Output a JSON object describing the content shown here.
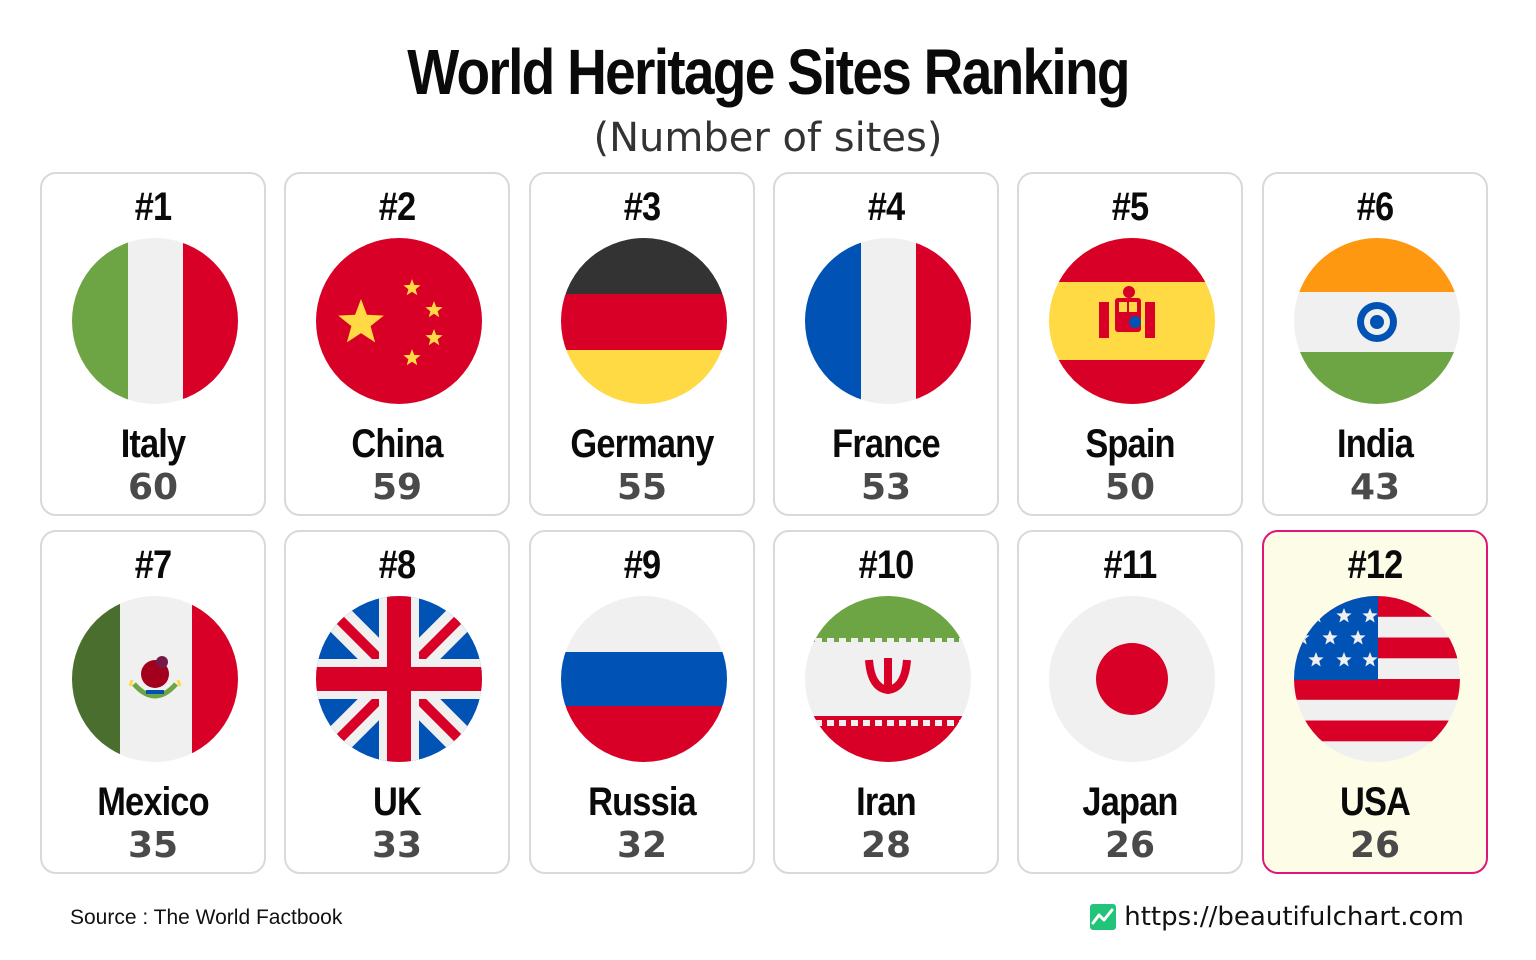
{
  "chart_data": {
    "type": "table",
    "title": "World Heritage Sites Ranking",
    "subtitle": "(Number of sites)",
    "categories": [
      "Italy",
      "China",
      "Germany",
      "France",
      "Spain",
      "India",
      "Mexico",
      "UK",
      "Russia",
      "Iran",
      "Japan",
      "USA"
    ],
    "ranks": [
      "#1",
      "#2",
      "#3",
      "#4",
      "#5",
      "#6",
      "#7",
      "#8",
      "#9",
      "#10",
      "#11",
      "#12"
    ],
    "values": [
      60,
      59,
      55,
      53,
      50,
      43,
      35,
      33,
      32,
      28,
      26,
      26
    ],
    "flags": [
      "italy-flag-icon",
      "china-flag-icon",
      "germany-flag-icon",
      "france-flag-icon",
      "spain-flag-icon",
      "india-flag-icon",
      "mexico-flag-icon",
      "uk-flag-icon",
      "russia-flag-icon",
      "iran-flag-icon",
      "japan-flag-icon",
      "usa-flag-icon"
    ],
    "highlighted": "USA",
    "highlight_color": "#e0157a"
  },
  "footer": {
    "source": "Source : The World Factbook",
    "site": "https://beautifulchart.com",
    "site_icon": "chart-logo-icon",
    "site_icon_color": "#22c47a"
  }
}
